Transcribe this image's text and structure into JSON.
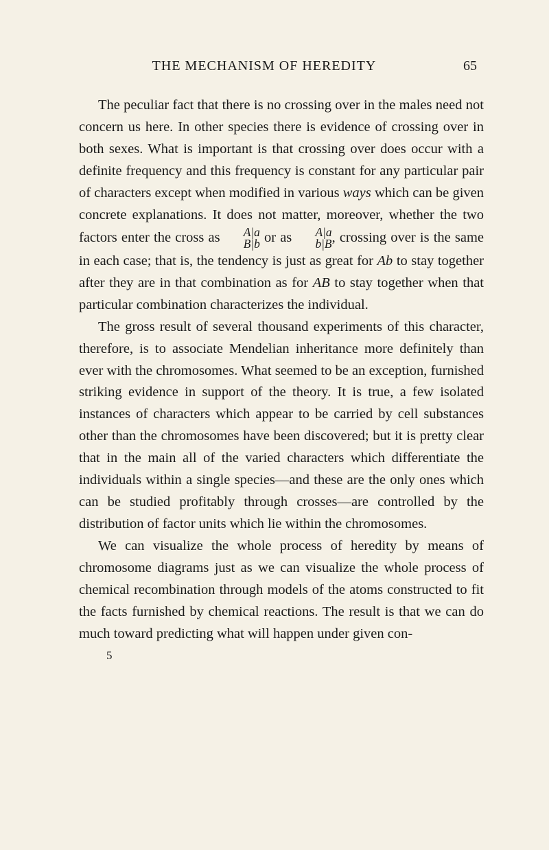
{
  "page": {
    "header_title": "THE MECHANISM OF HEREDITY",
    "page_number": "65",
    "signature_number": "5",
    "background_color": "#f5f1e6",
    "text_color": "#1a1a1a",
    "font_family": "Century Schoolbook, Georgia, serif",
    "body_font_size": 20.5,
    "line_height": 1.56
  },
  "paragraphs": {
    "p1_part1": "The peculiar fact that there is no crossing over in the males need not concern us here. In other species there is evidence of crossing over in both sexes. What is important is that crossing over does occur with a definite frequency and this frequency is constant for any particular pair of characters except when modified in various ",
    "p1_ways": "ways",
    "p1_part2": " which can be given concrete explanations. It does not matter, moreover, whether the two factors enter the cross as ",
    "p1_frac1_top": "A|a",
    "p1_frac1_bot": "B|b",
    "p1_part3": " or as ",
    "p1_frac2_top": "A|a",
    "p1_frac2_bot": "b|B",
    "p1_part4": ", crossing over is the same in each case; that is, the tendency is just as great for ",
    "p1_ab1": "Ab",
    "p1_part5": " to stay together after they are in that combination as for ",
    "p1_ab2": "AB",
    "p1_part6": " to stay together when that particular combination characterizes the individual.",
    "p2": "The gross result of several thousand experiments of this character, therefore, is to associate Mendelian inheritance more definitely than ever with the chromosomes. What seemed to be an exception, furnished striking evidence in support of the theory. It is true, a few isolated instances of characters which appear to be carried by cell substances other than the chromosomes have been discovered; but it is pretty clear that in the main all of the varied characters which differentiate the individuals within a single species—and these are the only ones which can be studied profitably through crosses—are controlled by the distribution of factor units which lie within the chromosomes.",
    "p3": "We can visualize the whole process of heredity by means of chromosome diagrams just as we can visualize the whole process of chemical recombination through models of the atoms constructed to fit the facts furnished by chemical reactions. The result is that we can do much toward predicting what will happen under given con-"
  }
}
